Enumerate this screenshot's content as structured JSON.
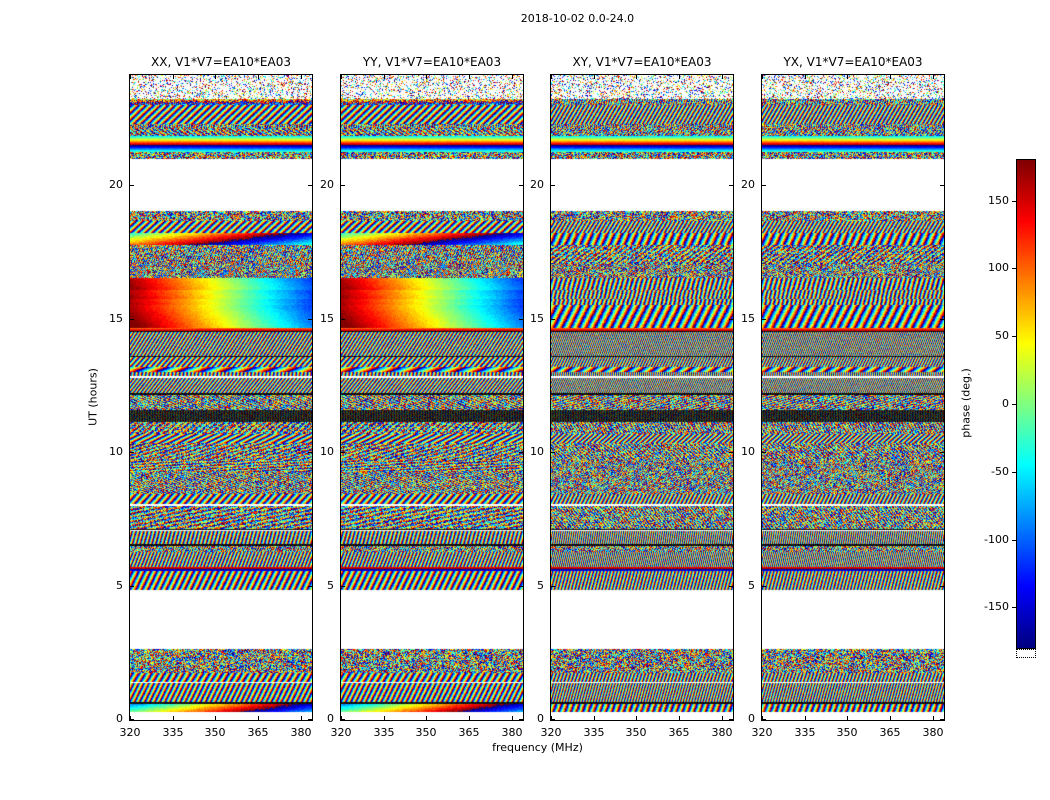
{
  "title": "2018-10-02 0.0-24.0",
  "chart_data": {
    "type": "heatmap",
    "panels": [
      {
        "title": "XX, V1*V7=EA10*EA03",
        "dense": false
      },
      {
        "title": "YY, V1*V7=EA10*EA03",
        "dense": false
      },
      {
        "title": "XY, V1*V7=EA10*EA03",
        "dense": true
      },
      {
        "title": "YX, V1*V7=EA10*EA03",
        "dense": true
      }
    ],
    "xlabel": "frequency (MHz)",
    "ylabel": "UT (hours)",
    "x_range": [
      320,
      384
    ],
    "x_ticks": [
      320,
      335,
      350,
      365,
      380
    ],
    "y_range": [
      0,
      24.1
    ],
    "y_ticks": [
      0,
      5,
      10,
      15,
      20
    ],
    "value_range": [
      -180,
      180
    ],
    "colormap": "jet",
    "colorbar": {
      "label": "phase (deg.)",
      "ticks": [
        150,
        100,
        50,
        0,
        -50,
        -100,
        -150
      ]
    },
    "data_extent_hours": [
      0.3,
      24.1
    ],
    "no_data_intervals": [
      [
        19.0,
        20.95
      ],
      [
        2.65,
        4.85
      ]
    ],
    "smooth_phase_interval": [
      15.35,
      16.75
    ],
    "noise_seed": 20181002
  }
}
